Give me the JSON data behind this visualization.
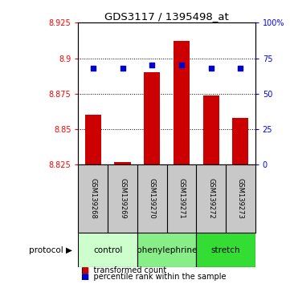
{
  "title": "GDS3117 / 1395498_at",
  "samples": [
    "GSM139268",
    "GSM139269",
    "GSM139270",
    "GSM139271",
    "GSM139272",
    "GSM139273"
  ],
  "red_values": [
    8.86,
    8.827,
    8.89,
    8.912,
    8.874,
    8.858
  ],
  "blue_values": [
    68,
    68,
    70,
    70,
    68,
    68
  ],
  "y_min": 8.825,
  "y_max": 8.925,
  "y_ticks": [
    8.825,
    8.85,
    8.875,
    8.9,
    8.925
  ],
  "y_right_ticks": [
    0,
    25,
    50,
    75,
    100
  ],
  "y_right_labels": [
    "0",
    "25",
    "50",
    "75",
    "100%"
  ],
  "protocol_groups": [
    {
      "label": "control",
      "indices": [
        0,
        1
      ],
      "color": "#ccffcc"
    },
    {
      "label": "phenylephrine",
      "indices": [
        2,
        3
      ],
      "color": "#88ee88"
    },
    {
      "label": "stretch",
      "indices": [
        4,
        5
      ],
      "color": "#33dd33"
    }
  ],
  "bar_color": "#cc0000",
  "dot_color": "#0000cc",
  "bar_width": 0.55,
  "background_color": "#ffffff",
  "plot_bg": "#ffffff",
  "sample_label_bg": "#c8c8c8",
  "legend_red_label": "transformed count",
  "legend_blue_label": "percentile rank within the sample"
}
